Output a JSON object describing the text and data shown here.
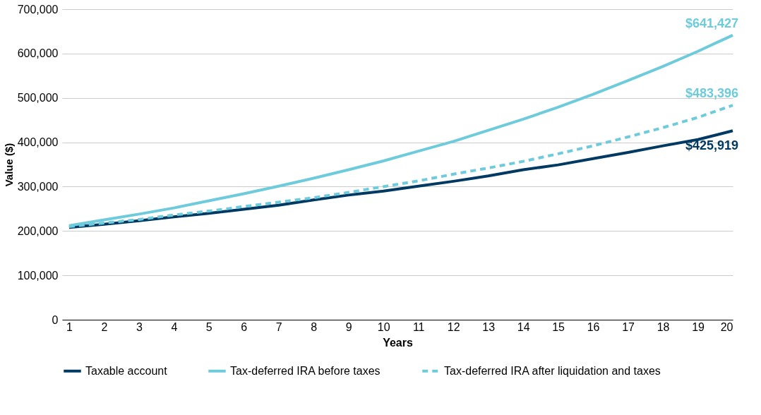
{
  "chart_data": {
    "type": "line",
    "xlabel": "Years",
    "ylabel": "Value ($)",
    "x": [
      1,
      2,
      3,
      4,
      5,
      6,
      7,
      8,
      9,
      10,
      11,
      12,
      13,
      14,
      15,
      16,
      17,
      18,
      19,
      20
    ],
    "xlim": [
      0.8,
      20
    ],
    "xticks": [
      1,
      2,
      3,
      4,
      5,
      6,
      7,
      8,
      9,
      10,
      11,
      12,
      13,
      14,
      15,
      16,
      17,
      18,
      19,
      20
    ],
    "series": [
      {
        "name": "Taxable account",
        "color": "#003a63",
        "line_style": "solid",
        "values": [
          208000,
          215000,
          223000,
          232000,
          240000,
          249000,
          258000,
          270000,
          281000,
          290000,
          301000,
          312000,
          324000,
          338000,
          349000,
          363000,
          377000,
          392000,
          406000,
          425919
        ],
        "value_labels": [
          null,
          null,
          null,
          null,
          null,
          null,
          null,
          null,
          null,
          null,
          null,
          null,
          null,
          null,
          null,
          null,
          null,
          null,
          null,
          "$425,919"
        ]
      },
      {
        "name": "Tax-deferred IRA before taxes",
        "color": "#6ecbdb",
        "line_style": "solid",
        "values": [
          212000,
          225000,
          238000,
          252000,
          268000,
          284000,
          301000,
          319000,
          338000,
          358000,
          380000,
          402000,
          427000,
          452000,
          479000,
          508000,
          539000,
          571000,
          605000,
          641427
        ],
        "value_labels": [
          null,
          null,
          null,
          null,
          null,
          null,
          null,
          null,
          null,
          null,
          null,
          null,
          null,
          null,
          null,
          null,
          null,
          null,
          null,
          "$641,427"
        ]
      },
      {
        "name": "Tax-deferred IRA after liquidation and taxes",
        "color": "#6ecbdb",
        "line_style": "dashed",
        "values": [
          210000,
          218000,
          226000,
          236000,
          245000,
          255000,
          265000,
          275000,
          287000,
          300000,
          313000,
          328000,
          342000,
          357000,
          374000,
          392000,
          412000,
          433000,
          456000,
          483396
        ],
        "value_labels": [
          null,
          null,
          null,
          null,
          null,
          null,
          null,
          null,
          null,
          null,
          null,
          null,
          null,
          null,
          null,
          null,
          null,
          null,
          null,
          "$483,396"
        ]
      }
    ],
    "ylim": [
      0,
      700000
    ],
    "yticks": [
      0,
      {
        "value": 100000,
        "label": "100,000"
      },
      {
        "value": 200000,
        "label": "200,000"
      },
      {
        "value": 300000,
        "label": "300,000"
      },
      {
        "value": 400000,
        "label": "400,000"
      },
      {
        "value": 500000,
        "label": "500,000"
      },
      {
        "value": 600000,
        "label": "600,000"
      },
      {
        "value": 700000,
        "label": "700,000"
      }
    ],
    "grid": "y",
    "legend": "bottom",
    "marker": "none"
  }
}
